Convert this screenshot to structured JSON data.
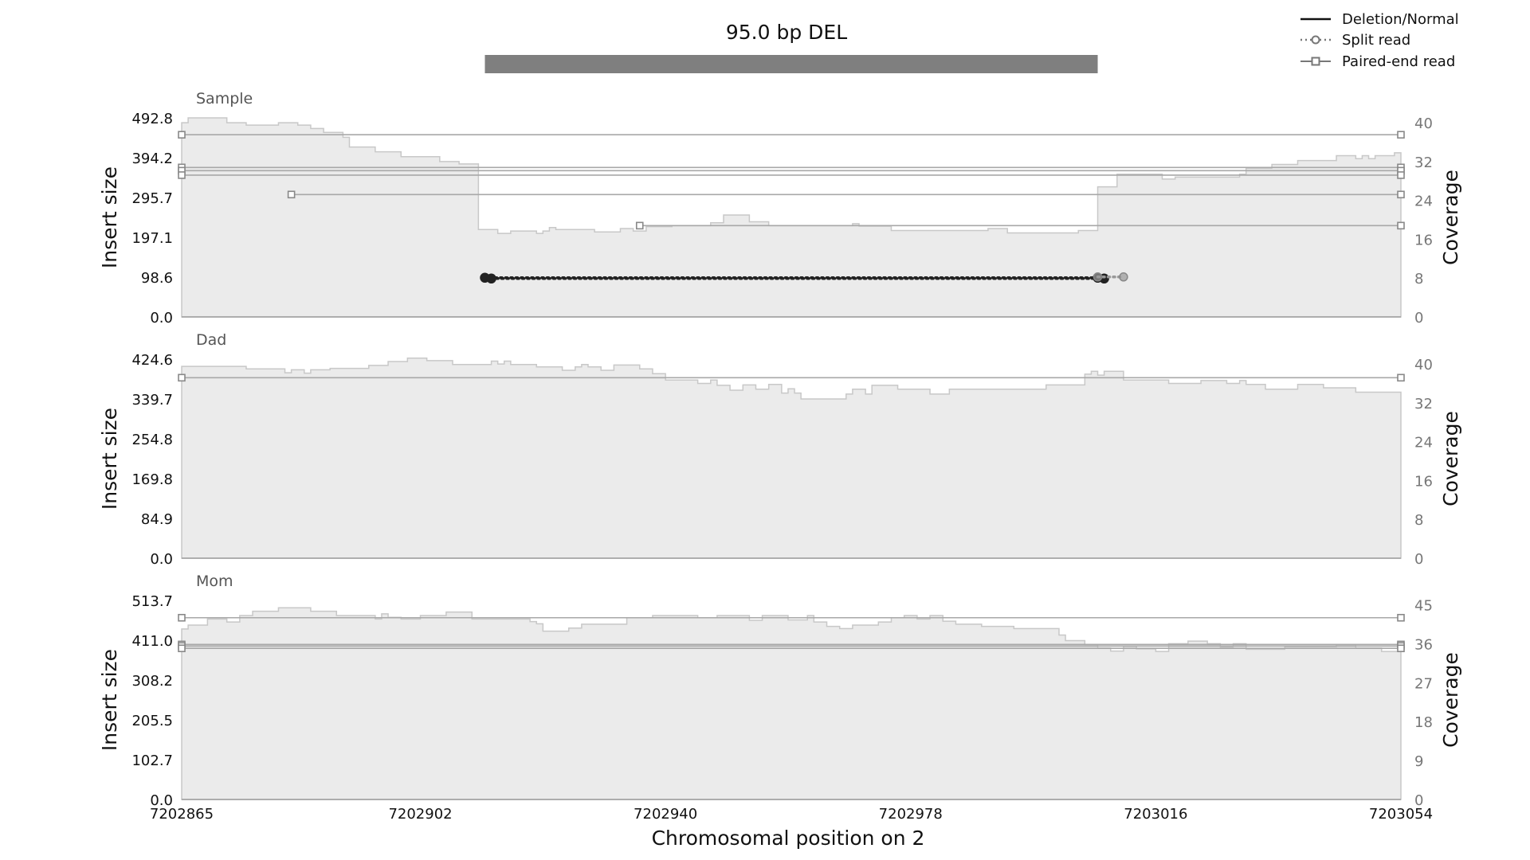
{
  "title": "95.0 bp DEL",
  "xlabel": "Chromosomal position on 2",
  "legend": {
    "placement": "top-right",
    "items": [
      {
        "label": "Deletion/Normal",
        "style": "solid"
      },
      {
        "label": "Split read",
        "style": "dotted-circle"
      },
      {
        "label": "Paired-end read",
        "style": "solid-square"
      }
    ]
  },
  "colors": {
    "coverage_fill": "#ebebeb",
    "coverage_line": "#c8c8c8",
    "event_bar": "#7f7f7f",
    "pair_line": "#a8a8a8",
    "split_dot": "#222222",
    "axis_line": "#9e9e9e",
    "panel_label": "#555555",
    "right_tick": "#777777"
  },
  "chart_data": {
    "type": "area",
    "xlim": [
      7202865,
      7203054
    ],
    "x_ticks": [
      "7202865",
      "7202902",
      "7202940",
      "7202978",
      "7203016",
      "7203054"
    ],
    "event": {
      "label": "95.0 bp DEL",
      "start": 7202912,
      "end": 7203007
    },
    "panels": [
      {
        "name": "Sample",
        "ylabel": "Insert size",
        "y2label": "Coverage",
        "ylim": [
          0,
          492.8
        ],
        "y2lim": [
          0,
          41
        ],
        "y_ticks": [
          "0.0",
          "98.6",
          "197.1",
          "295.7",
          "394.2",
          "492.8"
        ],
        "y2_ticks": [
          "0",
          "8",
          "16",
          "24",
          "32",
          "40"
        ],
        "coverage": [
          [
            7202865,
            40
          ],
          [
            7202866,
            41
          ],
          [
            7202869,
            41
          ],
          [
            7202872,
            40
          ],
          [
            7202875,
            39.5
          ],
          [
            7202880,
            40
          ],
          [
            7202883,
            39.5
          ],
          [
            7202885,
            38.8
          ],
          [
            7202887,
            38
          ],
          [
            7202890,
            37
          ],
          [
            7202891,
            35
          ],
          [
            7202895,
            34
          ],
          [
            7202899,
            33
          ],
          [
            7202905,
            32
          ],
          [
            7202908,
            31.5
          ],
          [
            7202911,
            18
          ],
          [
            7202914,
            17.2
          ],
          [
            7202916,
            17.7
          ],
          [
            7202920,
            17.2
          ],
          [
            7202921,
            17.7
          ],
          [
            7202922,
            18.4
          ],
          [
            7202923,
            18
          ],
          [
            7202929,
            17.5
          ],
          [
            7202933,
            18.2
          ],
          [
            7202935,
            17.7
          ],
          [
            7202937,
            18.6
          ],
          [
            7202941,
            18.8
          ],
          [
            7202947,
            19.4
          ],
          [
            7202949,
            21
          ],
          [
            7202953,
            19.6
          ],
          [
            7202956,
            18.8
          ],
          [
            7202969,
            19.2
          ],
          [
            7202970,
            18.7
          ],
          [
            7202975,
            17.8
          ],
          [
            7202990,
            18.2
          ],
          [
            7202993,
            17.3
          ],
          [
            7203004,
            17.8
          ],
          [
            7203007,
            26.8
          ],
          [
            7203010,
            29.4
          ],
          [
            7203017,
            28.4
          ],
          [
            7203019,
            28.8
          ],
          [
            7203029,
            29.4
          ],
          [
            7203030,
            30.6
          ],
          [
            7203034,
            31.4
          ],
          [
            7203038,
            32.2
          ],
          [
            7203044,
            33.2
          ],
          [
            7203047,
            32.6
          ],
          [
            7203048,
            33.2
          ],
          [
            7203049,
            32.6
          ],
          [
            7203050,
            33.2
          ],
          [
            7203053,
            33.8
          ],
          [
            7203054,
            33.8
          ]
        ],
        "paired_reads": [
          {
            "start": 7202865,
            "end": 7203054,
            "y": 451
          },
          {
            "start": 7202865,
            "end": 7203054,
            "y": 370
          },
          {
            "start": 7202865,
            "end": 7203054,
            "y": 362
          },
          {
            "start": 7202865,
            "end": 7203054,
            "y": 351
          },
          {
            "start": 7202882,
            "end": 7203054,
            "y": 303
          },
          {
            "start": 7202936,
            "end": 7203054,
            "y": 226
          }
        ],
        "split_reads": [
          {
            "start": 7202912,
            "end": 7203007,
            "y": 97,
            "style": "dark"
          },
          {
            "start": 7202913,
            "end": 7203008,
            "y": 95,
            "style": "dark"
          },
          {
            "start": 7203007,
            "end": 7203011,
            "y": 99,
            "style": "light"
          }
        ]
      },
      {
        "name": "Dad",
        "ylabel": "Insert size",
        "y2label": "Coverage",
        "ylim": [
          0,
          424.6
        ],
        "y2lim": [
          0,
          41
        ],
        "y_ticks": [
          "0.0",
          "84.9",
          "169.8",
          "254.8",
          "339.7",
          "424.6"
        ],
        "y2_ticks": [
          "0",
          "8",
          "16",
          "24",
          "32",
          "40"
        ],
        "coverage": [
          [
            7202865,
            39.5
          ],
          [
            7202875,
            39
          ],
          [
            7202881,
            38.2
          ],
          [
            7202882,
            38.8
          ],
          [
            7202884,
            38.1
          ],
          [
            7202885,
            38.8
          ],
          [
            7202888,
            39.1
          ],
          [
            7202894,
            39.7
          ],
          [
            7202897,
            40.5
          ],
          [
            7202900,
            41.2
          ],
          [
            7202903,
            40.7
          ],
          [
            7202907,
            39.9
          ],
          [
            7202913,
            40.6
          ],
          [
            7202914,
            40
          ],
          [
            7202915,
            40.6
          ],
          [
            7202916,
            39.9
          ],
          [
            7202920,
            39.4
          ],
          [
            7202924,
            38.7
          ],
          [
            7202926,
            39.4
          ],
          [
            7202927,
            39.9
          ],
          [
            7202928,
            39.4
          ],
          [
            7202930,
            38.7
          ],
          [
            7202932,
            39.8
          ],
          [
            7202936,
            39
          ],
          [
            7202938,
            38
          ],
          [
            7202940,
            36.7
          ],
          [
            7202945,
            36
          ],
          [
            7202947,
            36.7
          ],
          [
            7202948,
            35.6
          ],
          [
            7202950,
            34.6
          ],
          [
            7202952,
            35.7
          ],
          [
            7202954,
            34.8
          ],
          [
            7202956,
            35.8
          ],
          [
            7202958,
            34
          ],
          [
            7202959,
            34.9
          ],
          [
            7202960,
            34
          ],
          [
            7202961,
            32.8
          ],
          [
            7202968,
            33.8
          ],
          [
            7202969,
            34.8
          ],
          [
            7202971,
            33.8
          ],
          [
            7202972,
            35.6
          ],
          [
            7202976,
            34.8
          ],
          [
            7202981,
            33.8
          ],
          [
            7202984,
            34.8
          ],
          [
            7202999,
            35.7
          ],
          [
            7203005,
            37.9
          ],
          [
            7203006,
            38.5
          ],
          [
            7203007,
            37.7
          ],
          [
            7203008,
            38.5
          ],
          [
            7203011,
            36.7
          ],
          [
            7203018,
            36
          ],
          [
            7203023,
            36.6
          ],
          [
            7203027,
            36
          ],
          [
            7203029,
            36.6
          ],
          [
            7203030,
            35.8
          ],
          [
            7203033,
            34.8
          ],
          [
            7203038,
            35.8
          ],
          [
            7203042,
            35.1
          ],
          [
            7203047,
            34.2
          ],
          [
            7203054,
            34.2
          ]
        ],
        "paired_reads": [
          {
            "start": 7202865,
            "end": 7203054,
            "y": 385
          }
        ],
        "split_reads": []
      },
      {
        "name": "Mom",
        "ylabel": "Insert size",
        "y2label": "Coverage",
        "ylim": [
          0,
          513.7
        ],
        "y2lim": [
          0,
          46
        ],
        "y_ticks": [
          "0.0",
          "102.7",
          "205.5",
          "308.2",
          "411.0",
          "513.7"
        ],
        "y2_ticks": [
          "0",
          "9",
          "18",
          "27",
          "36",
          "45"
        ],
        "coverage": [
          [
            7202865,
            39.4
          ],
          [
            7202866,
            40.3
          ],
          [
            7202869,
            41.7
          ],
          [
            7202872,
            41
          ],
          [
            7202874,
            42.5
          ],
          [
            7202876,
            43.5
          ],
          [
            7202880,
            44.3
          ],
          [
            7202885,
            43.5
          ],
          [
            7202889,
            42.5
          ],
          [
            7202895,
            41.7
          ],
          [
            7202896,
            42.9
          ],
          [
            7202897,
            42.1
          ],
          [
            7202899,
            41.7
          ],
          [
            7202902,
            42.5
          ],
          [
            7202906,
            43.3
          ],
          [
            7202910,
            41.7
          ],
          [
            7202919,
            41.1
          ],
          [
            7202920,
            40.6
          ],
          [
            7202921,
            38.9
          ],
          [
            7202925,
            39.6
          ],
          [
            7202927,
            40.5
          ],
          [
            7202934,
            42
          ],
          [
            7202938,
            42.5
          ],
          [
            7202945,
            42
          ],
          [
            7202948,
            42.5
          ],
          [
            7202953,
            41.4
          ],
          [
            7202955,
            42.5
          ],
          [
            7202959,
            41.5
          ],
          [
            7202962,
            42.5
          ],
          [
            7202963,
            41
          ],
          [
            7202965,
            40
          ],
          [
            7202967,
            39.5
          ],
          [
            7202969,
            40.3
          ],
          [
            7202973,
            41
          ],
          [
            7202975,
            42
          ],
          [
            7202977,
            42.5
          ],
          [
            7202979,
            41.7
          ],
          [
            7202981,
            42.5
          ],
          [
            7202983,
            41.2
          ],
          [
            7202985,
            40.5
          ],
          [
            7202989,
            40
          ],
          [
            7202994,
            39.5
          ],
          [
            7203001,
            38
          ],
          [
            7203002,
            36.7
          ],
          [
            7203005,
            35.8
          ],
          [
            7203007,
            35
          ],
          [
            7203009,
            34.3
          ],
          [
            7203011,
            35.4
          ],
          [
            7203013,
            34.8
          ],
          [
            7203016,
            34.2
          ],
          [
            7203018,
            36
          ],
          [
            7203021,
            36.6
          ],
          [
            7203024,
            36
          ],
          [
            7203026,
            35.2
          ],
          [
            7203028,
            36
          ],
          [
            7203030,
            34.7
          ],
          [
            7203036,
            35.3
          ],
          [
            7203044,
            35.8
          ],
          [
            7203047,
            35
          ],
          [
            7203051,
            34.2
          ],
          [
            7203054,
            34.2
          ]
        ],
        "paired_reads": [
          {
            "start": 7202865,
            "end": 7203054,
            "y": 469
          },
          {
            "start": 7202865,
            "end": 7203054,
            "y": 400
          },
          {
            "start": 7202865,
            "end": 7203054,
            "y": 396
          },
          {
            "start": 7202865,
            "end": 7203054,
            "y": 390
          }
        ],
        "split_reads": []
      }
    ]
  }
}
